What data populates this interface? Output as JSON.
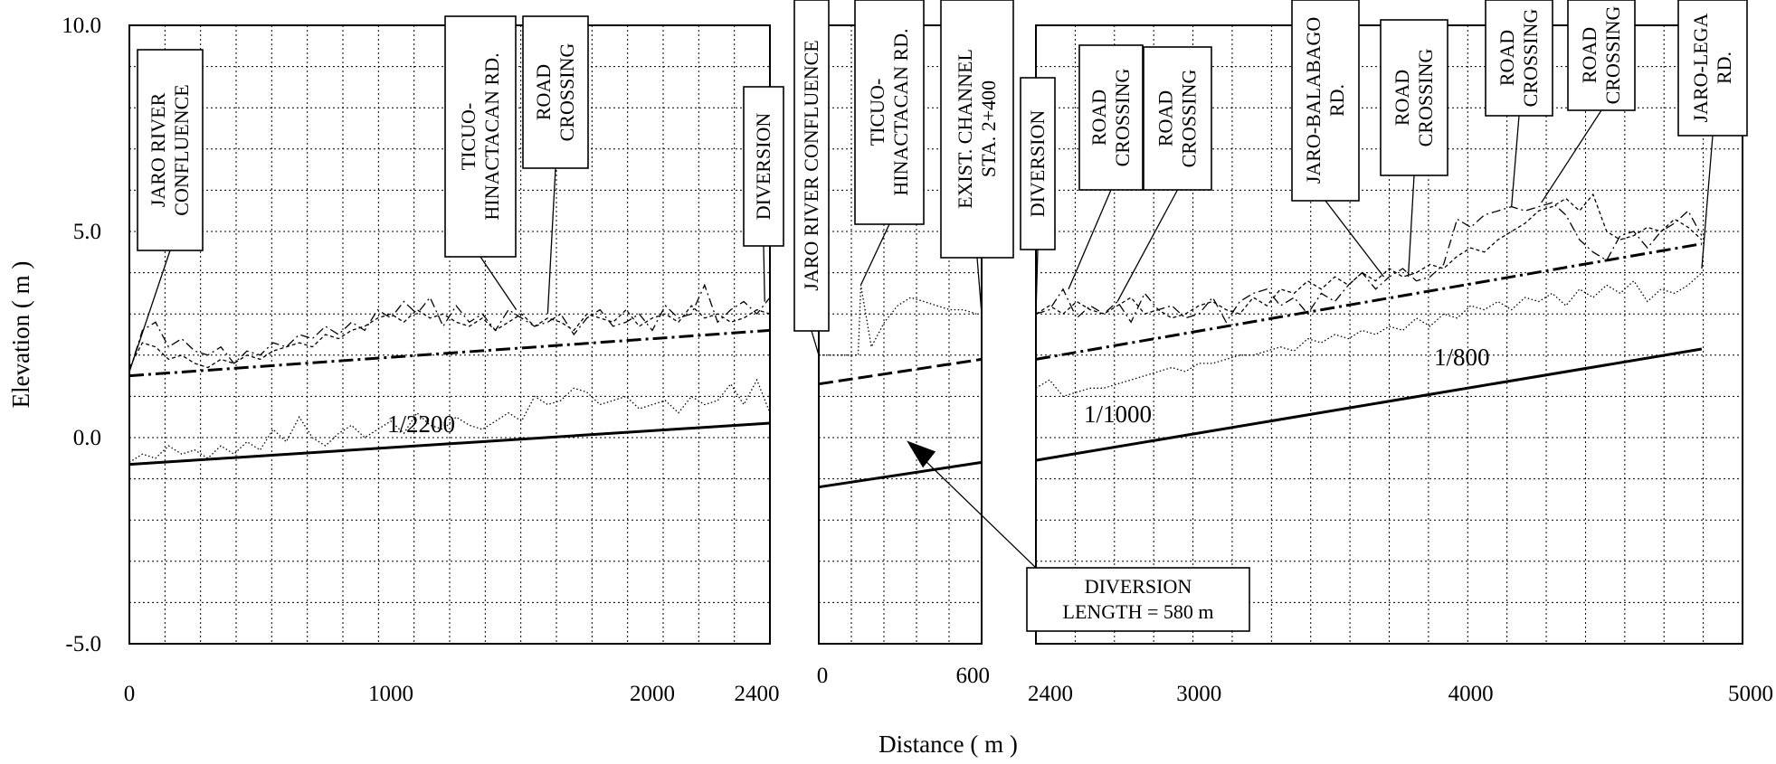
{
  "chart_data": {
    "type": "line",
    "xlabel": "Distance ( m )",
    "ylabel": "Elevation ( m )",
    "ylim": [
      -5,
      10
    ],
    "y_ticks": [
      "10.0",
      "5.0",
      "0.0",
      "-5.0"
    ],
    "y_tick_values": [
      10,
      5,
      0,
      -5
    ],
    "grid": true,
    "panels": [
      {
        "xlim": [
          0,
          2450
        ],
        "x_ticks": [
          0,
          1000,
          2000,
          2400
        ],
        "x_tick_labels": [
          "0",
          "1000",
          "2000",
          "2400"
        ],
        "series": [
          {
            "role": "bed",
            "x": [
              0,
              50,
              100,
              150,
              200,
              250,
              300,
              350,
              400,
              450,
              500,
              550,
              600,
              650,
              700,
              750,
              800,
              850,
              900,
              950,
              1000,
              1050,
              1100,
              1150,
              1200,
              1250,
              1300,
              1350,
              1400,
              1450,
              1500,
              1550,
              1600,
              1650,
              1700,
              1750,
              1800,
              1850,
              1900,
              1950,
              2000,
              2050,
              2100,
              2150,
              2200,
              2250,
              2300,
              2350,
              2400,
              2450
            ],
            "y": [
              -0.6,
              -0.4,
              -0.5,
              -0.2,
              -0.4,
              -0.3,
              -0.5,
              -0.2,
              -0.4,
              -0.1,
              -0.3,
              0.2,
              -0.1,
              0.5,
              0.0,
              -0.2,
              0.1,
              0.3,
              0.0,
              0.2,
              0.4,
              0.1,
              0.6,
              0.3,
              0.2,
              0.5,
              0.3,
              0.2,
              0.4,
              0.6,
              0.4,
              1.0,
              0.8,
              0.9,
              1.2,
              1.1,
              0.8,
              0.9,
              1.0,
              0.7,
              0.8,
              0.9,
              0.6,
              1.0,
              0.8,
              0.9,
              1.3,
              0.8,
              1.4,
              0.6
            ]
          },
          {
            "role": "left bank",
            "x": [
              0,
              50,
              100,
              150,
              200,
              250,
              300,
              350,
              400,
              450,
              500,
              550,
              600,
              650,
              700,
              750,
              800,
              850,
              900,
              950,
              1000,
              1050,
              1100,
              1150,
              1200,
              1250,
              1300,
              1350,
              1400,
              1450,
              1500,
              1550,
              1600,
              1650,
              1700,
              1750,
              1800,
              1850,
              1900,
              1950,
              2000,
              2050,
              2100,
              2150,
              2200,
              2250,
              2300,
              2350,
              2400,
              2450
            ],
            "y": [
              1.6,
              2.6,
              2.8,
              2.2,
              2.4,
              2.1,
              2.0,
              2.2,
              1.8,
              2.1,
              2.0,
              2.3,
              2.2,
              2.5,
              2.4,
              2.7,
              2.5,
              2.8,
              2.6,
              3.1,
              2.9,
              3.3,
              3.0,
              3.4,
              2.7,
              3.2,
              2.8,
              3.0,
              2.6,
              3.1,
              2.9,
              2.7,
              2.8,
              3.0,
              2.5,
              2.9,
              3.1,
              2.7,
              2.8,
              3.0,
              2.6,
              3.2,
              2.9,
              3.0,
              3.7,
              2.8,
              3.1,
              3.3,
              3.0,
              3.4
            ]
          },
          {
            "role": "right bank",
            "x": [
              0,
              50,
              100,
              150,
              200,
              250,
              300,
              350,
              400,
              450,
              500,
              550,
              600,
              650,
              700,
              750,
              800,
              850,
              900,
              950,
              1000,
              1050,
              1100,
              1150,
              1200,
              1250,
              1300,
              1350,
              1400,
              1450,
              1500,
              1550,
              1600,
              1650,
              1700,
              1750,
              1800,
              1850,
              1900,
              1950,
              2000,
              2050,
              2100,
              2150,
              2200,
              2250,
              2300,
              2350,
              2400,
              2450
            ],
            "y": [
              1.7,
              2.3,
              2.2,
              1.9,
              2.0,
              1.8,
              1.7,
              1.9,
              1.8,
              2.0,
              1.9,
              2.1,
              2.2,
              2.3,
              2.2,
              2.5,
              2.4,
              2.6,
              2.7,
              2.9,
              3.0,
              2.8,
              3.1,
              2.9,
              3.0,
              2.8,
              2.7,
              2.9,
              2.6,
              2.8,
              3.0,
              2.7,
              2.9,
              2.8,
              2.6,
              3.0,
              2.9,
              2.8,
              3.1,
              2.7,
              2.9,
              3.0,
              2.8,
              3.2,
              2.9,
              3.0,
              2.8,
              2.9,
              3.1,
              3.0
            ]
          },
          {
            "role": "design water level",
            "x": [
              0,
              2450
            ],
            "y": [
              1.5,
              2.6
            ]
          },
          {
            "role": "design bed",
            "x": [
              0,
              2450
            ],
            "y": [
              -0.65,
              0.35
            ]
          }
        ]
      },
      {
        "xlim": [
          0,
          620
        ],
        "x_ticks": [
          0,
          600
        ],
        "x_tick_labels": [
          "0",
          "600"
        ],
        "series": [
          {
            "role": "ground",
            "x": [
              0,
              50,
              100,
              150,
              160,
              200,
              250,
              300,
              350,
              400,
              450,
              500,
              550,
              600
            ],
            "y": [
              2.0,
              2.0,
              2.0,
              2.0,
              3.7,
              2.2,
              2.8,
              3.2,
              3.4,
              3.3,
              3.2,
              3.1,
              3.1,
              3.0
            ]
          },
          {
            "role": "design water level",
            "x": [
              0,
              620
            ],
            "y": [
              1.3,
              1.9
            ]
          },
          {
            "role": "design bed",
            "x": [
              0,
              620
            ],
            "y": [
              -1.2,
              -0.6
            ]
          }
        ]
      },
      {
        "xlim": [
          2400,
          5000
        ],
        "x_ticks": [
          2400,
          3000,
          4000,
          5000
        ],
        "x_tick_labels": [
          "2400",
          "3000",
          "4000",
          "5000"
        ],
        "series": [
          {
            "role": "bed",
            "x": [
              2400,
              2450,
              2500,
              2550,
              2600,
              2650,
              2700,
              2750,
              2800,
              2850,
              2900,
              2950,
              3000,
              3050,
              3100,
              3150,
              3200,
              3250,
              3300,
              3350,
              3400,
              3450,
              3500,
              3550,
              3600,
              3650,
              3700,
              3750,
              3800,
              3850,
              3900,
              3950,
              4000,
              4050,
              4100,
              4150,
              4200,
              4250,
              4300,
              4350,
              4400,
              4450,
              4500,
              4550,
              4600,
              4650,
              4700,
              4750,
              4800,
              4850
            ],
            "y": [
              1.2,
              1.4,
              1.0,
              1.1,
              1.2,
              1.2,
              1.3,
              1.4,
              1.5,
              1.6,
              1.7,
              1.6,
              1.8,
              1.8,
              1.9,
              2.0,
              2.0,
              2.1,
              2.2,
              2.1,
              2.4,
              2.3,
              2.5,
              2.4,
              2.6,
              2.5,
              2.7,
              2.6,
              2.9,
              2.7,
              3.0,
              2.9,
              3.2,
              3.1,
              3.3,
              3.1,
              3.4,
              3.3,
              3.5,
              3.2,
              3.6,
              3.4,
              3.7,
              3.5,
              3.8,
              3.3,
              3.6,
              3.5,
              3.7,
              4.0
            ]
          },
          {
            "role": "left bank",
            "x": [
              2400,
              2450,
              2500,
              2550,
              2600,
              2650,
              2700,
              2750,
              2800,
              2850,
              2900,
              2950,
              3000,
              3050,
              3100,
              3150,
              3200,
              3250,
              3300,
              3350,
              3400,
              3450,
              3500,
              3550,
              3600,
              3650,
              3700,
              3750,
              3800,
              3850,
              3900,
              3950,
              4000,
              4050,
              4100,
              4150,
              4200,
              4250,
              4300,
              4350,
              4400,
              4450,
              4500,
              4550,
              4600,
              4650,
              4700,
              4750,
              4800,
              4850
            ],
            "y": [
              3.0,
              3.1,
              3.6,
              2.9,
              3.2,
              3.0,
              3.3,
              2.8,
              3.5,
              3.1,
              3.2,
              2.9,
              3.0,
              3.4,
              2.8,
              3.3,
              3.5,
              3.6,
              3.2,
              3.4,
              3.0,
              3.5,
              3.3,
              3.7,
              4.0,
              3.6,
              3.9,
              4.1,
              3.8,
              3.9,
              4.2,
              5.3,
              5.1,
              5.4,
              5.5,
              5.6,
              5.5,
              5.6,
              5.7,
              5.4,
              4.8,
              4.5,
              4.3,
              4.9,
              5.0,
              4.6,
              5.0,
              5.2,
              5.5,
              4.9
            ]
          },
          {
            "role": "right bank",
            "x": [
              2400,
              2450,
              2500,
              2550,
              2600,
              2650,
              2700,
              2750,
              2800,
              2850,
              2900,
              2950,
              3000,
              3050,
              3100,
              3150,
              3200,
              3250,
              3300,
              3350,
              3400,
              3450,
              3500,
              3550,
              3600,
              3650,
              3700,
              3750,
              3800,
              3850,
              3900,
              3950,
              4000,
              4050,
              4100,
              4150,
              4200,
              4250,
              4300,
              4350,
              4400,
              4450,
              4500,
              4550,
              4600,
              4650,
              4700,
              4750,
              4800,
              4850
            ],
            "y": [
              3.0,
              3.2,
              3.0,
              3.3,
              3.1,
              3.0,
              3.2,
              3.4,
              3.0,
              3.1,
              2.9,
              3.0,
              3.2,
              3.3,
              3.1,
              3.0,
              3.4,
              3.2,
              3.6,
              3.5,
              3.8,
              3.6,
              3.9,
              3.7,
              4.0,
              3.8,
              4.1,
              3.9,
              4.0,
              4.2,
              4.1,
              4.4,
              4.6,
              4.5,
              4.8,
              5.0,
              5.2,
              5.5,
              5.6,
              5.8,
              5.5,
              5.9,
              5.0,
              4.8,
              4.9,
              5.1,
              5.0,
              5.3,
              5.1,
              4.8
            ]
          },
          {
            "role": "design water level",
            "x": [
              2400,
              4850
            ],
            "y": [
              1.9,
              4.7
            ]
          },
          {
            "role": "design bed",
            "x": [
              2400,
              4850
            ],
            "y": [
              -0.55,
              2.15
            ]
          }
        ]
      }
    ],
    "annotations": [
      {
        "panel": 0,
        "text_lines": [
          "JARO RIVER",
          "CONFLUENCE"
        ],
        "x": 0,
        "y": 1.6
      },
      {
        "panel": 0,
        "text_lines": [
          "TICUO-",
          "HINACTACAN RD."
        ],
        "x": 1480,
        "y": 3.1
      },
      {
        "panel": 0,
        "text_lines": [
          "ROAD",
          "CROSSING"
        ],
        "x": 1600,
        "y": 3.0
      },
      {
        "panel": 0,
        "text_lines": [
          "DIVERSION"
        ],
        "x": 2430,
        "y": 3.3
      },
      {
        "panel": 1,
        "text_lines": [
          "JARO RIVER CONFLUENCE"
        ],
        "x": 0,
        "y": 2.0
      },
      {
        "panel": 1,
        "text_lines": [
          "TICUO-",
          "HINACTACAN RD."
        ],
        "x": 160,
        "y": 3.7
      },
      {
        "panel": 1,
        "text_lines": [
          "EXIST. CHANNEL",
          "STA. 2+400"
        ],
        "x": 620,
        "y": 3.0
      },
      {
        "panel": 2,
        "text_lines": [
          "DIVERSION"
        ],
        "x": 2400,
        "y": 3.0
      },
      {
        "panel": 2,
        "text_lines": [
          "ROAD",
          "CROSSING"
        ],
        "x": 2520,
        "y": 3.6
      },
      {
        "panel": 2,
        "text_lines": [
          "ROAD",
          "CROSSING"
        ],
        "x": 2700,
        "y": 3.3
      },
      {
        "panel": 2,
        "text_lines": [
          "JARO-BALABAGO",
          "RD."
        ],
        "x": 3680,
        "y": 3.9
      },
      {
        "panel": 2,
        "text_lines": [
          "ROAD",
          "CROSSING"
        ],
        "x": 3770,
        "y": 3.9
      },
      {
        "panel": 2,
        "text_lines": [
          "ROAD",
          "CROSSING"
        ],
        "x": 4150,
        "y": 5.6
      },
      {
        "panel": 2,
        "text_lines": [
          "ROAD",
          "CROSSING"
        ],
        "x": 4260,
        "y": 5.7
      },
      {
        "panel": 2,
        "text_lines": [
          "JARO-LEGA",
          "RD."
        ],
        "x": 4850,
        "y": 4.1
      }
    ],
    "slope_labels": [
      {
        "panel": 0,
        "text": "1/2200"
      },
      {
        "panel": 2,
        "text": "1/1000"
      },
      {
        "panel": 2,
        "text": "1/800"
      }
    ],
    "callout": {
      "text_lines": [
        "DIVERSION",
        "LENGTH = 580 m"
      ],
      "target_panel": 1,
      "target_x": 300,
      "target_y": -0.6
    }
  }
}
